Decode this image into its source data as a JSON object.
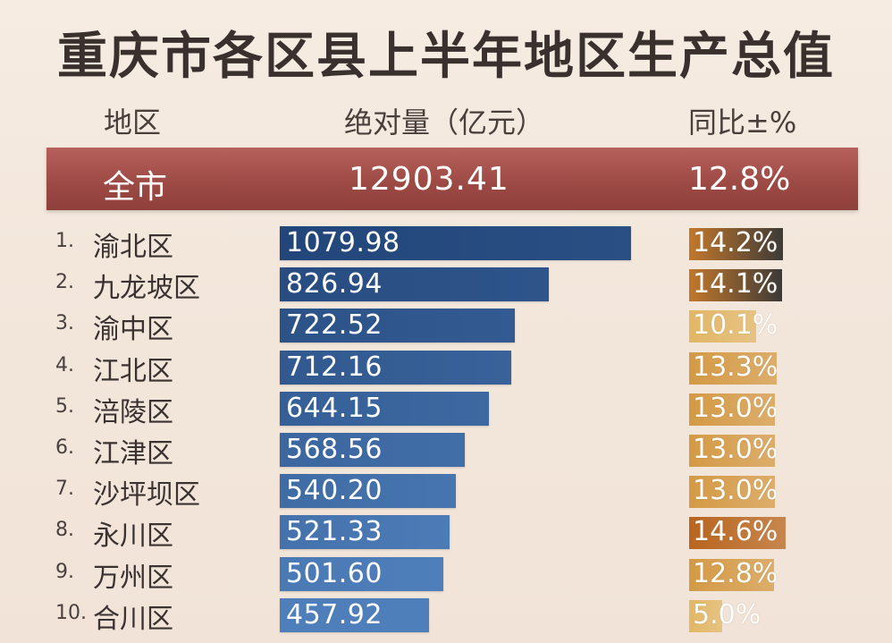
{
  "chart_data": {
    "type": "bar",
    "title": "重庆市各区县上半年地区生产总值",
    "columns": {
      "region": "地区",
      "value": "绝对量（亿元）",
      "yoy": "同比±%"
    },
    "total": {
      "label": "全市",
      "value": "12903.41",
      "yoy": "12.8%"
    },
    "rows": [
      {
        "rank": "1.",
        "region": "渝北区",
        "value": 1079.98,
        "value_text": "1079.98",
        "yoy": 14.2,
        "yoy_text": "14.2%"
      },
      {
        "rank": "2.",
        "region": "九龙坡区",
        "value": 826.94,
        "value_text": "826.94",
        "yoy": 14.1,
        "yoy_text": "14.1%"
      },
      {
        "rank": "3.",
        "region": "渝中区",
        "value": 722.52,
        "value_text": "722.52",
        "yoy": 10.1,
        "yoy_text": "10.1%"
      },
      {
        "rank": "4.",
        "region": "江北区",
        "value": 712.16,
        "value_text": "712.16",
        "yoy": 13.3,
        "yoy_text": "13.3%"
      },
      {
        "rank": "5.",
        "region": "涪陵区",
        "value": 644.15,
        "value_text": "644.15",
        "yoy": 13.0,
        "yoy_text": "13.0%"
      },
      {
        "rank": "6.",
        "region": "江津区",
        "value": 568.56,
        "value_text": "568.56",
        "yoy": 13.0,
        "yoy_text": "13.0%"
      },
      {
        "rank": "7.",
        "region": "沙坪坝区",
        "value": 540.2,
        "value_text": "540.20",
        "yoy": 13.0,
        "yoy_text": "13.0%"
      },
      {
        "rank": "8.",
        "region": "永川区",
        "value": 521.33,
        "value_text": "521.33",
        "yoy": 14.6,
        "yoy_text": "14.6%"
      },
      {
        "rank": "9.",
        "region": "万州区",
        "value": 501.6,
        "value_text": "501.60",
        "yoy": 12.8,
        "yoy_text": "12.8%"
      },
      {
        "rank": "10.",
        "region": "合川区",
        "value": 457.92,
        "value_text": "457.92",
        "yoy": 5.0,
        "yoy_text": "5.0%"
      }
    ],
    "colors": {
      "total_bar": "#9e4a45",
      "value_bar_dark": "#22467a",
      "value_bar_light": "#4f7fbb",
      "yoy_high": "#b8651f",
      "yoy_mid": "#d49a45",
      "yoy_low": "#e2b765"
    }
  }
}
